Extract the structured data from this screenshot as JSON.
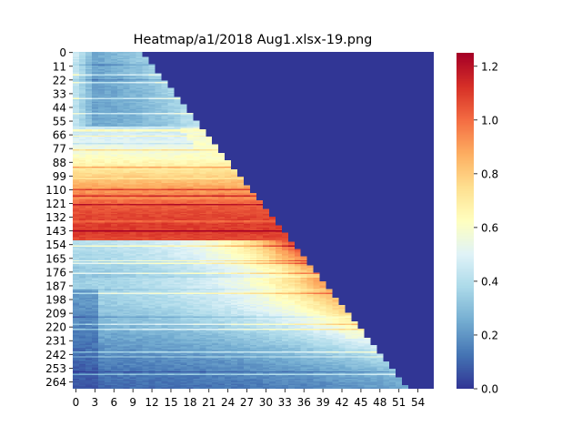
{
  "chart_data": {
    "type": "heatmap",
    "title": "Heatmap/a1/2018 Aug1.xlsx-19.png",
    "xlabel": "",
    "ylabel": "",
    "n_rows": 270,
    "n_cols": 57,
    "x_ticks": [
      0,
      3,
      6,
      9,
      12,
      15,
      18,
      21,
      24,
      27,
      30,
      33,
      36,
      39,
      42,
      45,
      48,
      51,
      54
    ],
    "y_ticks": [
      0,
      11,
      22,
      33,
      44,
      55,
      66,
      77,
      88,
      99,
      110,
      121,
      132,
      143,
      154,
      165,
      176,
      187,
      198,
      209,
      220,
      231,
      242,
      253,
      264
    ],
    "colorbar": {
      "colormap": "RdYlBu_r",
      "vmin": 0.0,
      "vmax": 1.25,
      "ticks": [
        0.0,
        0.2,
        0.4,
        0.6,
        0.8,
        1.0,
        1.2
      ],
      "tick_labels": [
        "0.0",
        "0.2",
        "0.4",
        "0.6",
        "0.8",
        "1.0",
        "1.2"
      ]
    },
    "colors": {
      "low": "#313695",
      "mid": "#ffffbf",
      "high": "#a50026"
    },
    "structure": {
      "upper_right_region": "zero (dark blue)",
      "diagonal_edge": "values drop to 0 past a diagonal boundary running from about column 10 at row 0 to column 52 at row 270",
      "high_band_rows": [
        110,
        175
      ],
      "high_band_peak": 1.1
    }
  }
}
